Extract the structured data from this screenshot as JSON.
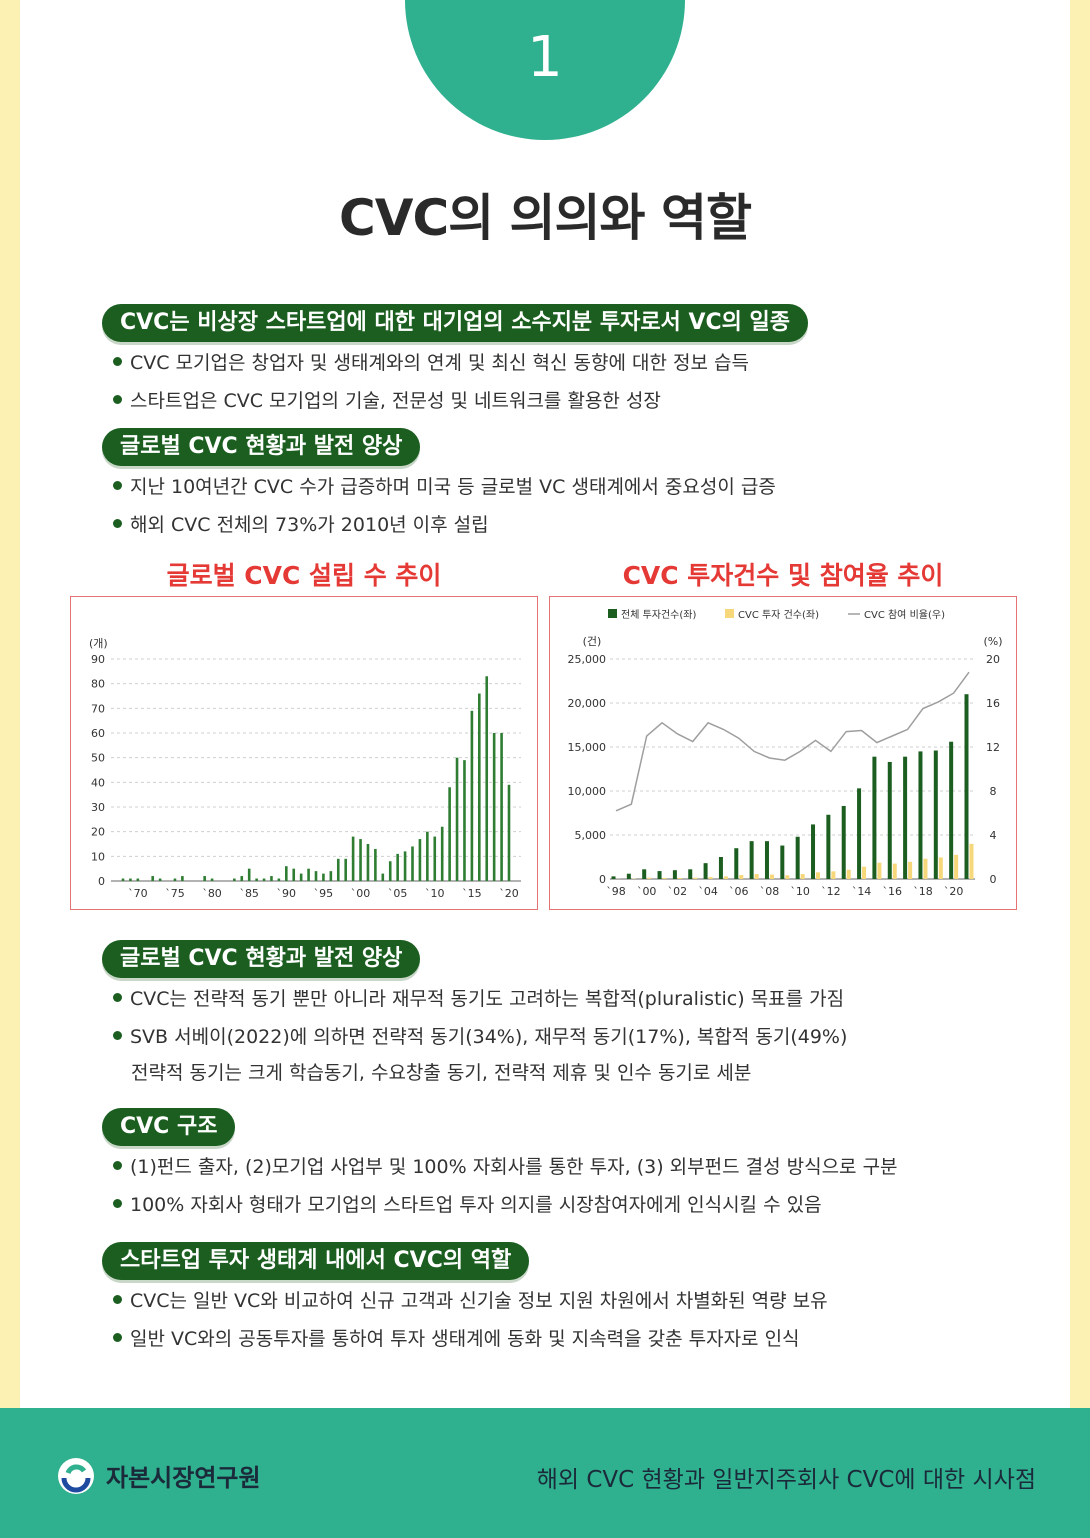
{
  "badge_number": "1",
  "title": "CVC의 의의와 역할",
  "sections": [
    {
      "heading": "CVC는 비상장 스타트업에 대한 대기업의 소수지분 투자로서 VC의 일종",
      "bullets": [
        "CVC 모기업은 창업자 및 생태계와의 연계 및 최신 혁신 동향에 대한 정보 습득",
        "스타트업은 CVC 모기업의 기술, 전문성 및 네트워크를 활용한 성장"
      ]
    },
    {
      "heading": "글로벌 CVC 현황과 발전 양상",
      "bullets": [
        "지난 10여년간 CVC 수가 급증하며 미국 등 글로벌 VC 생태계에서 중요성이 급증",
        "해외 CVC 전체의 73%가 2010년 이후 설립"
      ]
    },
    {
      "heading": "글로벌 CVC 현황과 발전 양상",
      "bullets": [
        "CVC는 전략적 동기 뿐만 아니라 재무적 동기도 고려하는 복합적(pluralistic) 목표를 가짐",
        "SVB 서베이(2022)에 의하면 전략적 동기(34%), 재무적 동기(17%), 복합적 동기(49%)"
      ],
      "continuation": "전략적 동기는 크게 학습동기, 수요창출 동기, 전략적 제휴 및 인수 동기로 세분"
    },
    {
      "heading": "CVC 구조",
      "bullets": [
        "(1)펀드 출자, (2)모기업 사업부 및 100% 자회사를 통한 투자, (3) 외부펀드 결성 방식으로 구분",
        "100% 자회사 형태가 모기업의 스타트업 투자 의지를 시장참여자에게 인식시킬 수 있음"
      ]
    },
    {
      "heading": "스타트업 투자 생태계 내에서 CVC의 역할",
      "bullets": [
        "CVC는 일반 VC와 비교하여 신규 고객과 신기술 정보 지원 차원에서 차별화된 역량 보유",
        "일반 VC와의 공동투자를 통하여 투자 생태계에 동화 및 지속력을 갖춘 투자자로 인식"
      ]
    }
  ],
  "chart_data": [
    {
      "type": "bar",
      "title": "글로벌 CVC 설립 수 추이",
      "ylabel": "(개)",
      "ylim": [
        0,
        90
      ],
      "yticks": [
        "0",
        "10",
        "20",
        "30",
        "40",
        "50",
        "60",
        "70",
        "80",
        "90"
      ],
      "x": [
        1968,
        1969,
        1970,
        1971,
        1972,
        1973,
        1974,
        1975,
        1976,
        1977,
        1978,
        1979,
        1980,
        1981,
        1982,
        1983,
        1984,
        1985,
        1986,
        1987,
        1988,
        1989,
        1990,
        1991,
        1992,
        1993,
        1994,
        1995,
        1996,
        1997,
        1998,
        1999,
        2000,
        2001,
        2002,
        2003,
        2004,
        2005,
        2006,
        2007,
        2008,
        2009,
        2010,
        2011,
        2012,
        2013,
        2014,
        2015,
        2016,
        2017,
        2018,
        2019,
        2020
      ],
      "values": [
        1,
        1,
        1,
        0,
        2,
        1,
        0,
        1,
        2,
        0,
        0,
        2,
        1,
        0,
        0,
        1,
        2,
        5,
        1,
        1,
        2,
        1,
        6,
        5,
        3,
        5,
        4,
        3,
        4,
        9,
        9,
        18,
        17,
        15,
        13,
        3,
        8,
        11,
        12,
        14,
        17,
        20,
        18,
        22,
        38,
        50,
        49,
        69,
        76,
        83,
        60,
        60,
        39
      ],
      "xticks": [
        "`70",
        "`75",
        "`80",
        "`85",
        "`90",
        "`95",
        "`00",
        "`05",
        "`10",
        "`15",
        "`20"
      ],
      "color": "#2e7d32"
    },
    {
      "type": "bar",
      "title": "CVC 투자건수 및 참여율 추이",
      "legend": [
        "전체 투자건수(좌)",
        "CVC 투자 건수(좌)",
        "CVC 참여 비율(우)"
      ],
      "legend_position": "top",
      "ylabel_left": "(건)",
      "ylabel_right": "(%)",
      "ylim_left": [
        0,
        25000
      ],
      "ylim_right": [
        0,
        20
      ],
      "yticks_left": [
        "0",
        "5,000",
        "10,000",
        "15,000",
        "20,000",
        "25,000"
      ],
      "yticks_right": [
        "0",
        "4",
        "8",
        "12",
        "16",
        "20"
      ],
      "x": [
        1998,
        1999,
        2000,
        2001,
        2002,
        2003,
        2004,
        2005,
        2006,
        2007,
        2008,
        2009,
        2010,
        2011,
        2012,
        2013,
        2014,
        2015,
        2016,
        2017,
        2018,
        2019,
        2020,
        2021
      ],
      "xticks": [
        "`98",
        "`00",
        "`02",
        "`04",
        "`06",
        "`08",
        "`10",
        "`12",
        "`14",
        "`16",
        "`18",
        "`20"
      ],
      "series": [
        {
          "name": "전체 투자건수(좌)",
          "type": "bar",
          "color": "#1b5e20",
          "values": [
            300,
            600,
            1100,
            900,
            1000,
            1100,
            1800,
            2500,
            3500,
            4300,
            4300,
            3800,
            4800,
            6200,
            7300,
            8300,
            10300,
            13900,
            13300,
            13900,
            14500,
            14600,
            15600,
            21000
          ]
        },
        {
          "name": "CVC 투자 건수(좌)",
          "type": "bar",
          "color": "#f6d77a",
          "values": [
            20,
            40,
            150,
            130,
            120,
            150,
            220,
            300,
            450,
            560,
            500,
            420,
            560,
            760,
            870,
            1050,
            1400,
            1850,
            1750,
            1950,
            2300,
            2450,
            2750,
            4000
          ]
        },
        {
          "name": "CVC 참여 비율(우)",
          "type": "line",
          "color": "#9e9e9e",
          "values": [
            6.2,
            6.8,
            13.0,
            14.2,
            13.2,
            12.5,
            14.2,
            13.6,
            12.8,
            11.6,
            11.0,
            10.8,
            11.6,
            12.6,
            11.6,
            13.4,
            13.5,
            12.4,
            13.0,
            13.6,
            15.5,
            16.1,
            16.9,
            18.8
          ]
        }
      ]
    }
  ],
  "footer": {
    "org": "자본시장연구원",
    "report": "해외 CVC 현황과  일반지주회사 CVC에  대한 시사점"
  }
}
